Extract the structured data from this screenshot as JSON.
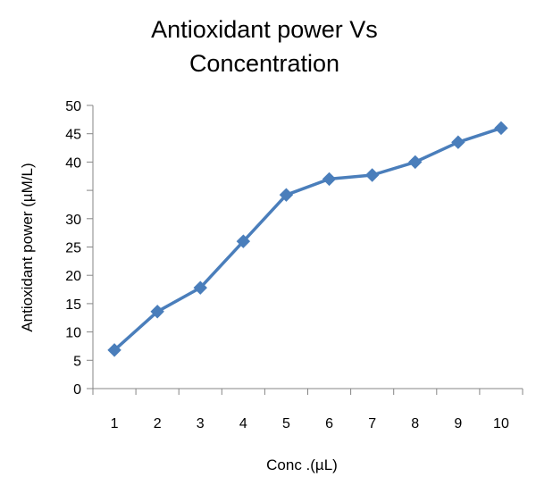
{
  "chart_data": {
    "type": "line",
    "title_lines": [
      "Antioxidant power Vs",
      "Concentration"
    ],
    "xlabel": "Conc .(µL)",
    "ylabel": "Antioxidant power (µM/L)",
    "categories": [
      "1",
      "2",
      "3",
      "4",
      "5",
      "6",
      "7",
      "8",
      "9",
      "10"
    ],
    "series": [
      {
        "values": [
          6.8,
          13.6,
          17.8,
          26,
          34.2,
          37,
          37.7,
          40,
          43.5,
          46
        ],
        "color": "#4a7ebb",
        "marker": "diamond"
      }
    ],
    "ylim": [
      0,
      50
    ],
    "y_ticks": [
      {
        "value": 0,
        "label": "0"
      },
      {
        "value": 5,
        "label": "5"
      },
      {
        "value": 10,
        "label": "10"
      },
      {
        "value": 15,
        "label": "15"
      },
      {
        "value": 20,
        "label": "20"
      },
      {
        "value": 25,
        "label": "25"
      },
      {
        "value": 30,
        "label": "30"
      },
      {
        "value": 35,
        "label": ""
      },
      {
        "value": 40,
        "label": "40"
      },
      {
        "value": 45,
        "label": "45"
      },
      {
        "value": 50,
        "label": "50"
      }
    ],
    "grid": false,
    "legend": "none",
    "axis_color": "#868686"
  }
}
